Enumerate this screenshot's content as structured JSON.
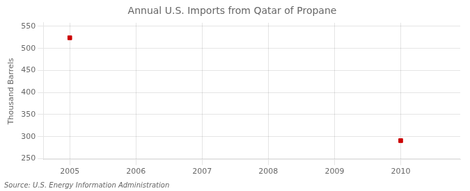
{
  "chart_data": {
    "type": "scatter",
    "title": "Annual U.S. Imports from Qatar of Propane",
    "ylabel": "Thousand Barrels",
    "source": "Source: U.S. Energy Information Administration",
    "x": [
      2005,
      2010
    ],
    "values": [
      524,
      291
    ],
    "color": "#cc0000",
    "marker": "square",
    "xlim": [
      2004.6,
      2010.9
    ],
    "xticks": [
      2005,
      2006,
      2007,
      2008,
      2009,
      2010
    ],
    "ylim": [
      248,
      558
    ],
    "yticks": [
      250,
      300,
      350,
      400,
      450,
      500,
      550
    ],
    "grid": true
  }
}
